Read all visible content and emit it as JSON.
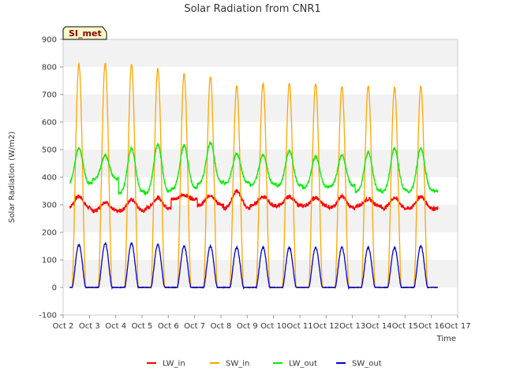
{
  "chart_data": {
    "type": "line",
    "title": "Solar Radiation from CNR1",
    "xlabel": "Time",
    "ylabel": "Solar Radiation (W/m2)",
    "badge": "SI_met",
    "xlim": [
      2,
      17
    ],
    "ylim": [
      -100,
      900
    ],
    "grid": "horizontal bands",
    "legend_position": "bottom",
    "x_ticks": [
      {
        "value": 2,
        "label": "Oct 2"
      },
      {
        "value": 3,
        "label": "Oct 3"
      },
      {
        "value": 4,
        "label": "Oct 4"
      },
      {
        "value": 5,
        "label": "Oct 5"
      },
      {
        "value": 6,
        "label": "Oct 6"
      },
      {
        "value": 7,
        "label": "Oct 7"
      },
      {
        "value": 8,
        "label": "Oct 8"
      },
      {
        "value": 9,
        "label": "Oct 9"
      },
      {
        "value": 10,
        "label": "Oct 10"
      },
      {
        "value": 11,
        "label": "Oct 11"
      },
      {
        "value": 12,
        "label": "Oct 12"
      },
      {
        "value": 13,
        "label": "Oct 13"
      },
      {
        "value": 14,
        "label": "Oct 14"
      },
      {
        "value": 15,
        "label": "Oct 15"
      },
      {
        "value": 16,
        "label": "Oct 16"
      },
      {
        "value": 17,
        "label": "Oct 17"
      }
    ],
    "y_ticks": [
      -100,
      0,
      100,
      200,
      300,
      400,
      500,
      600,
      700,
      800,
      900
    ],
    "days": [
      2.6,
      3.6,
      4.6,
      5.6,
      6.6,
      7.6,
      8.6,
      9.6,
      10.6,
      11.6,
      12.6,
      13.6,
      14.6,
      15.6
    ],
    "series": [
      {
        "name": "LW_in",
        "color": "#ff0000",
        "day_values": [
          330,
          310,
          320,
          325,
          335,
          335,
          350,
          330,
          330,
          325,
          330,
          320,
          325,
          330
        ],
        "night_values": [
          285,
          275,
          275,
          285,
          320,
          295,
          285,
          295,
          295,
          295,
          285,
          295,
          285,
          285
        ]
      },
      {
        "name": "SW_in",
        "color": "#ffa500",
        "day_values": [
          810,
          815,
          810,
          795,
          775,
          765,
          730,
          740,
          740,
          740,
          730,
          730,
          725,
          730
        ],
        "night_values": [
          0,
          0,
          0,
          0,
          0,
          0,
          0,
          0,
          0,
          0,
          0,
          0,
          0,
          0
        ]
      },
      {
        "name": "LW_out",
        "color": "#00ee00",
        "day_values": [
          505,
          480,
          505,
          520,
          515,
          525,
          485,
          480,
          495,
          475,
          480,
          490,
          505,
          505
        ],
        "night_values": [
          370,
          390,
          340,
          340,
          355,
          375,
          375,
          370,
          365,
          360,
          365,
          345,
          345,
          345
        ]
      },
      {
        "name": "SW_out",
        "color": "#0000cd",
        "day_values": [
          155,
          160,
          160,
          155,
          150,
          150,
          145,
          145,
          145,
          145,
          145,
          145,
          145,
          150
        ],
        "night_values": [
          0,
          0,
          0,
          0,
          0,
          0,
          0,
          0,
          0,
          0,
          0,
          0,
          0,
          0
        ]
      }
    ]
  }
}
